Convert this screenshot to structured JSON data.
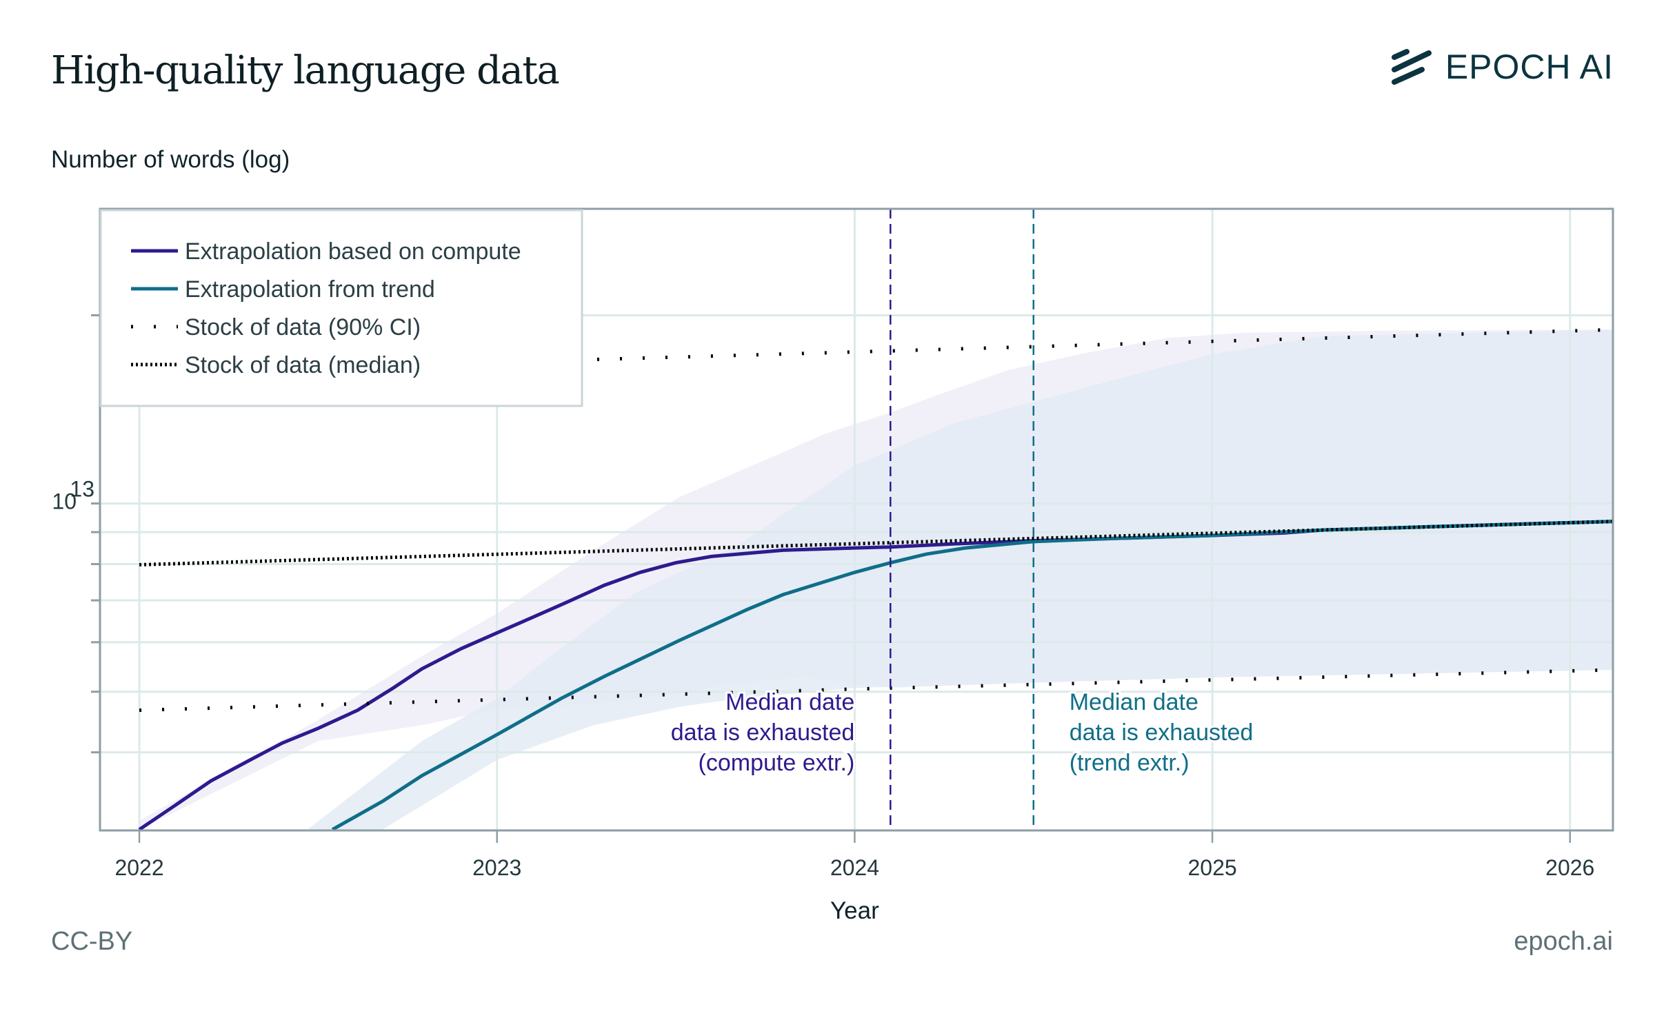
{
  "header": {
    "title": "High-quality language data",
    "brand": "EPOCH AI"
  },
  "footer": {
    "license": "CC-BY",
    "site": "epoch.ai"
  },
  "colors": {
    "compute": "#2e1a8f",
    "trend": "#0f6e89",
    "stock": "#000000",
    "compute_band": "#efedf7",
    "trend_band": "#e3ebf4",
    "grid": "#dde9ea",
    "axis": "#8e9ea4",
    "brand": "#0b3440"
  },
  "chart_data": {
    "type": "line",
    "title": "High-quality language data",
    "xlabel": "Year",
    "ylabel": "Number of words (log)",
    "yscale": "log",
    "units": "words (values given in trillions, i.e. ×1e12)",
    "xlim": [
      2021.89,
      2026.12
    ],
    "ylim": [
      3.0,
      29.6
    ],
    "x_ticks": [
      2022,
      2023,
      2024,
      2025,
      2026
    ],
    "x_tick_labels": [
      "2022",
      "2023",
      "2024",
      "2025",
      "2026"
    ],
    "y_major_ticks": [
      10
    ],
    "y_major_tick_labels": [
      {
        "base": "10",
        "exp": "13"
      }
    ],
    "y_minor_ticks": [
      4,
      5,
      6,
      7,
      8,
      9,
      20
    ],
    "grid": true,
    "legend": {
      "placement": "top-left",
      "entries": [
        {
          "label": "Extrapolation based on compute",
          "style": "solid",
          "series": "compute"
        },
        {
          "label": "Extrapolation from trend",
          "style": "solid",
          "series": "trend"
        },
        {
          "label": "Stock of data (90% CI)",
          "style": "sparse-dotted",
          "series": "stock_ci"
        },
        {
          "label": "Stock of data (median)",
          "style": "dense-dotted",
          "series": "stock_median"
        }
      ]
    },
    "series": [
      {
        "name": "Extrapolation based on compute",
        "key": "compute",
        "x": [
          2022.0,
          2022.1,
          2022.2,
          2022.31,
          2022.4,
          2022.5,
          2022.61,
          2022.71,
          2022.79,
          2022.9,
          2023.0,
          2023.09,
          2023.19,
          2023.3,
          2023.4,
          2023.5,
          2023.6,
          2023.8,
          2024.0,
          2024.1,
          2024.28,
          2024.5,
          2024.72,
          2025.0,
          2025.2,
          2025.31,
          2025.61,
          2025.91,
          2026.12
        ],
        "y": [
          3.01,
          3.29,
          3.6,
          3.89,
          4.14,
          4.37,
          4.67,
          5.07,
          5.44,
          5.86,
          6.21,
          6.54,
          6.93,
          7.4,
          7.76,
          8.04,
          8.23,
          8.42,
          8.49,
          8.52,
          8.62,
          8.72,
          8.79,
          8.89,
          8.97,
          9.07,
          9.18,
          9.29,
          9.36
        ]
      },
      {
        "name": "Extrapolation from trend",
        "key": "trend",
        "x": [
          2022.54,
          2022.68,
          2022.79,
          2023.0,
          2023.18,
          2023.3,
          2023.51,
          2023.7,
          2023.8,
          2024.0,
          2024.1,
          2024.2,
          2024.31,
          2024.5,
          2024.72,
          2025.0,
          2025.31,
          2025.61,
          2026.12
        ],
        "y": [
          3.01,
          3.34,
          3.67,
          4.27,
          4.88,
          5.29,
          6.04,
          6.77,
          7.15,
          7.76,
          8.04,
          8.3,
          8.49,
          8.69,
          8.79,
          8.89,
          9.07,
          9.18,
          9.36
        ]
      },
      {
        "name": "Stock of data (median)",
        "key": "stock_median",
        "x": [
          2022.0,
          2026.12
        ],
        "y": [
          7.98,
          9.36
        ]
      },
      {
        "name": "Stock of data (90% CI) upper",
        "key": "stock_ci_upper",
        "x": [
          2023.28,
          2024.1,
          2025.0,
          2026.12
        ],
        "y": [
          17.0,
          17.54,
          18.17,
          18.97
        ]
      },
      {
        "name": "Stock of data (90% CI) lower",
        "key": "stock_ci_lower",
        "x": [
          2022.0,
          2024.0,
          2026.12
        ],
        "y": [
          4.67,
          5.05,
          5.42
        ]
      }
    ],
    "bands": [
      {
        "name": "Compute extrapolation uncertainty",
        "key": "compute_band",
        "upper": {
          "x": [
            2022.0,
            2022.5,
            2022.79,
            2023.0,
            2023.27,
            2023.51,
            2023.68,
            2023.92,
            2024.1,
            2024.22,
            2024.43,
            2024.63,
            2024.87,
            2025.08,
            2025.5,
            2026.12
          ],
          "y": [
            3.11,
            4.51,
            5.7,
            6.67,
            8.42,
            10.24,
            11.28,
            12.94,
            13.98,
            14.83,
            16.35,
            17.34,
            18.38,
            18.75,
            18.9,
            18.97
          ]
        },
        "lower": {
          "x": [
            2022.0,
            2022.5,
            2022.79,
            2023.0,
            2023.27,
            2023.51,
            2023.68,
            2023.86,
            2024.1,
            2024.5,
            2025.0,
            2026.12
          ],
          "y": [
            3.01,
            4.17,
            4.42,
            4.69,
            4.78,
            4.97,
            5.17,
            5.27,
            5.07,
            5.17,
            5.27,
            5.42
          ]
        }
      },
      {
        "name": "Trend extrapolation uncertainty",
        "key": "trend_band",
        "upper": {
          "x": [
            2022.47,
            2022.79,
            2023.0,
            2023.15,
            2023.39,
            2023.68,
            2024.0,
            2024.28,
            2024.5,
            2024.72,
            2025.0,
            2025.31,
            2026.12
          ],
          "y": [
            3.01,
            4.17,
            4.88,
            5.7,
            7.21,
            8.62,
            11.51,
            13.45,
            14.55,
            15.73,
            17.34,
            18.53,
            18.97
          ]
        },
        "lower": {
          "x": [
            2022.68,
            2023.0,
            2023.27,
            2023.51,
            2023.68,
            2024.0,
            2024.5,
            2025.0,
            2026.12
          ],
          "y": [
            3.01,
            3.89,
            4.42,
            4.73,
            4.88,
            5.07,
            5.17,
            5.27,
            5.42
          ]
        }
      }
    ],
    "vlines": [
      {
        "key": "compute",
        "x": 2024.1,
        "style": "dashed"
      },
      {
        "key": "trend",
        "x": 2024.5,
        "style": "dashed"
      }
    ],
    "annotations": [
      {
        "key": "compute",
        "lines": [
          "Median date",
          "data is exhausted",
          "(compute extr.)"
        ],
        "x": 2024.0,
        "align": "right"
      },
      {
        "key": "trend",
        "lines": [
          "Median date",
          "data is exhausted",
          "(trend extr.)"
        ],
        "x": 2024.6,
        "align": "left"
      }
    ]
  }
}
